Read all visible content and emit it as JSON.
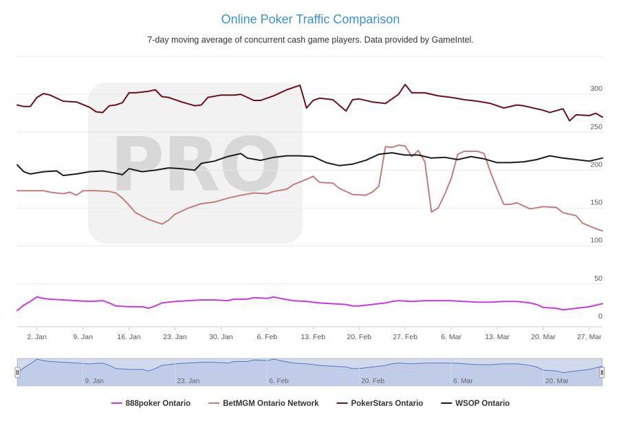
{
  "chart_data": {
    "type": "line",
    "title": "Online Poker Traffic Comparison",
    "subtitle": "7-day moving average of concurrent cash game players. Data provided by GameIntel.",
    "watermark": "PRO",
    "ylim": [
      0,
      350
    ],
    "yticks": [
      0,
      50,
      100,
      150,
      200,
      250,
      300
    ],
    "xticks": [
      "2. Jan",
      "9. Jan",
      "16. Jan",
      "23. Jan",
      "30. Jan",
      "6. Feb",
      "13. Feb",
      "20. Feb",
      "27. Feb",
      "6. Mar",
      "13. Mar",
      "20. Mar",
      "27. Mar"
    ],
    "navigator_ticks": [
      "9. Jan",
      "23. Jan",
      "6. Feb",
      "20. Feb",
      "6. Mar",
      "20. Mar"
    ],
    "x_start": "2022-12-30",
    "x_end": "2023-03-29",
    "grid": true,
    "legend_position": "bottom",
    "series": [
      {
        "name": "888poker Ontario",
        "color": "#c936e3",
        "points": [
          [
            "2022-12-30",
            15
          ],
          [
            "2022-12-31",
            22
          ],
          [
            "2023-01-01",
            27
          ],
          [
            "2023-01-02",
            33
          ],
          [
            "2023-01-03",
            31
          ],
          [
            "2023-01-04",
            30
          ],
          [
            "2023-01-06",
            29
          ],
          [
            "2023-01-08",
            28
          ],
          [
            "2023-01-10",
            27
          ],
          [
            "2023-01-12",
            28
          ],
          [
            "2023-01-13",
            25
          ],
          [
            "2023-01-14",
            21
          ],
          [
            "2023-01-16",
            20
          ],
          [
            "2023-01-18",
            20
          ],
          [
            "2023-01-19",
            18
          ],
          [
            "2023-01-20",
            21
          ],
          [
            "2023-01-21",
            25
          ],
          [
            "2023-01-23",
            27
          ],
          [
            "2023-01-25",
            28
          ],
          [
            "2023-01-27",
            29
          ],
          [
            "2023-01-29",
            29
          ],
          [
            "2023-01-31",
            28
          ],
          [
            "2023-02-01",
            30
          ],
          [
            "2023-02-03",
            30
          ],
          [
            "2023-02-04",
            32
          ],
          [
            "2023-02-06",
            31
          ],
          [
            "2023-02-07",
            33
          ],
          [
            "2023-02-08",
            31
          ],
          [
            "2023-02-10",
            28
          ],
          [
            "2023-02-12",
            27
          ],
          [
            "2023-02-14",
            25
          ],
          [
            "2023-02-16",
            24
          ],
          [
            "2023-02-18",
            23
          ],
          [
            "2023-02-19",
            21
          ],
          [
            "2023-02-20",
            21
          ],
          [
            "2023-02-22",
            23
          ],
          [
            "2023-02-24",
            25
          ],
          [
            "2023-02-25",
            27
          ],
          [
            "2023-02-26",
            28
          ],
          [
            "2023-02-28",
            27
          ],
          [
            "2023-03-02",
            28
          ],
          [
            "2023-03-06",
            28
          ],
          [
            "2023-03-08",
            27
          ],
          [
            "2023-03-10",
            26
          ],
          [
            "2023-03-12",
            26
          ],
          [
            "2023-03-14",
            27
          ],
          [
            "2023-03-16",
            27
          ],
          [
            "2023-03-18",
            25
          ],
          [
            "2023-03-19",
            23
          ],
          [
            "2023-03-20",
            19
          ],
          [
            "2023-03-22",
            18
          ],
          [
            "2023-03-23",
            16
          ],
          [
            "2023-03-25",
            18
          ],
          [
            "2023-03-27",
            20
          ],
          [
            "2023-03-29",
            24
          ]
        ]
      },
      {
        "name": "BetMGM Ontario Network",
        "color": "#c47b7b",
        "points": [
          [
            "2022-12-30",
            173
          ],
          [
            "2023-01-01",
            173
          ],
          [
            "2023-01-03",
            173
          ],
          [
            "2023-01-04",
            171
          ],
          [
            "2023-01-06",
            169
          ],
          [
            "2023-01-07",
            171
          ],
          [
            "2023-01-08",
            167
          ],
          [
            "2023-01-09",
            173
          ],
          [
            "2023-01-11",
            173
          ],
          [
            "2023-01-13",
            172
          ],
          [
            "2023-01-14",
            170
          ],
          [
            "2023-01-15",
            163
          ],
          [
            "2023-01-16",
            154
          ],
          [
            "2023-01-17",
            144
          ],
          [
            "2023-01-19",
            135
          ],
          [
            "2023-01-21",
            129
          ],
          [
            "2023-01-22",
            134
          ],
          [
            "2023-01-23",
            142
          ],
          [
            "2023-01-25",
            150
          ],
          [
            "2023-01-27",
            156
          ],
          [
            "2023-01-29",
            158
          ],
          [
            "2023-01-31",
            163
          ],
          [
            "2023-02-02",
            167
          ],
          [
            "2023-02-04",
            170
          ],
          [
            "2023-02-06",
            169
          ],
          [
            "2023-02-07",
            172
          ],
          [
            "2023-02-09",
            175
          ],
          [
            "2023-02-10",
            181
          ],
          [
            "2023-02-12",
            188
          ],
          [
            "2023-02-13",
            192
          ],
          [
            "2023-02-14",
            184
          ],
          [
            "2023-02-16",
            183
          ],
          [
            "2023-02-17",
            176
          ],
          [
            "2023-02-19",
            168
          ],
          [
            "2023-02-21",
            167
          ],
          [
            "2023-02-22",
            171
          ],
          [
            "2023-02-23",
            179
          ],
          [
            "2023-02-24",
            231
          ],
          [
            "2023-02-25",
            230
          ],
          [
            "2023-02-26",
            233
          ],
          [
            "2023-02-27",
            232
          ],
          [
            "2023-02-28",
            218
          ],
          [
            "2023-03-01",
            226
          ],
          [
            "2023-03-02",
            211
          ],
          [
            "2023-03-03",
            145
          ],
          [
            "2023-03-04",
            150
          ],
          [
            "2023-03-05",
            168
          ],
          [
            "2023-03-06",
            189
          ],
          [
            "2023-03-07",
            221
          ],
          [
            "2023-03-08",
            225
          ],
          [
            "2023-03-10",
            225
          ],
          [
            "2023-03-11",
            222
          ],
          [
            "2023-03-12",
            197
          ],
          [
            "2023-03-13",
            175
          ],
          [
            "2023-03-14",
            155
          ],
          [
            "2023-03-15",
            155
          ],
          [
            "2023-03-16",
            157
          ],
          [
            "2023-03-17",
            153
          ],
          [
            "2023-03-18",
            149
          ],
          [
            "2023-03-20",
            152
          ],
          [
            "2023-03-22",
            151
          ],
          [
            "2023-03-23",
            144
          ],
          [
            "2023-03-25",
            140
          ],
          [
            "2023-03-26",
            130
          ],
          [
            "2023-03-28",
            123
          ],
          [
            "2023-03-29",
            120
          ]
        ]
      },
      {
        "name": "PokerStars Ontario",
        "color": "#6e0b1a",
        "points": [
          [
            "2022-12-30",
            286
          ],
          [
            "2022-12-31",
            284
          ],
          [
            "2023-01-01",
            284
          ],
          [
            "2023-01-02",
            296
          ],
          [
            "2023-01-03",
            301
          ],
          [
            "2023-01-04",
            299
          ],
          [
            "2023-01-06",
            291
          ],
          [
            "2023-01-08",
            290
          ],
          [
            "2023-01-10",
            283
          ],
          [
            "2023-01-11",
            277
          ],
          [
            "2023-01-12",
            276
          ],
          [
            "2023-01-13",
            285
          ],
          [
            "2023-01-14",
            286
          ],
          [
            "2023-01-15",
            289
          ],
          [
            "2023-01-16",
            302
          ],
          [
            "2023-01-17",
            302
          ],
          [
            "2023-01-19",
            304
          ],
          [
            "2023-01-20",
            306
          ],
          [
            "2023-01-21",
            297
          ],
          [
            "2023-01-22",
            296
          ],
          [
            "2023-01-24",
            290
          ],
          [
            "2023-01-26",
            285
          ],
          [
            "2023-01-27",
            286
          ],
          [
            "2023-01-28",
            296
          ],
          [
            "2023-01-30",
            299
          ],
          [
            "2023-02-01",
            299
          ],
          [
            "2023-02-02",
            300
          ],
          [
            "2023-02-04",
            292
          ],
          [
            "2023-02-05",
            292
          ],
          [
            "2023-02-07",
            298
          ],
          [
            "2023-02-09",
            306
          ],
          [
            "2023-02-11",
            312
          ],
          [
            "2023-02-12",
            282
          ],
          [
            "2023-02-13",
            292
          ],
          [
            "2023-02-14",
            295
          ],
          [
            "2023-02-16",
            293
          ],
          [
            "2023-02-18",
            278
          ],
          [
            "2023-02-19",
            293
          ],
          [
            "2023-02-20",
            294
          ],
          [
            "2023-02-22",
            290
          ],
          [
            "2023-02-24",
            288
          ],
          [
            "2023-02-26",
            300
          ],
          [
            "2023-02-27",
            313
          ],
          [
            "2023-02-28",
            302
          ],
          [
            "2023-03-02",
            302
          ],
          [
            "2023-03-04",
            298
          ],
          [
            "2023-03-06",
            296
          ],
          [
            "2023-03-08",
            293
          ],
          [
            "2023-03-10",
            291
          ],
          [
            "2023-03-12",
            288
          ],
          [
            "2023-03-14",
            282
          ],
          [
            "2023-03-16",
            286
          ],
          [
            "2023-03-17",
            285
          ],
          [
            "2023-03-20",
            279
          ],
          [
            "2023-03-21",
            276
          ],
          [
            "2023-03-23",
            281
          ],
          [
            "2023-03-24",
            265
          ],
          [
            "2023-03-25",
            273
          ],
          [
            "2023-03-27",
            272
          ],
          [
            "2023-03-28",
            275
          ],
          [
            "2023-03-29",
            270
          ]
        ]
      },
      {
        "name": "WSOP Ontario",
        "color": "#1a1a1a",
        "points": [
          [
            "2022-12-30",
            207
          ],
          [
            "2022-12-31",
            198
          ],
          [
            "2023-01-01",
            195
          ],
          [
            "2023-01-03",
            198
          ],
          [
            "2023-01-05",
            199
          ],
          [
            "2023-01-06",
            193
          ],
          [
            "2023-01-08",
            195
          ],
          [
            "2023-01-10",
            198
          ],
          [
            "2023-01-12",
            199
          ],
          [
            "2023-01-14",
            196
          ],
          [
            "2023-01-15",
            194
          ],
          [
            "2023-01-16",
            202
          ],
          [
            "2023-01-18",
            198
          ],
          [
            "2023-01-20",
            200
          ],
          [
            "2023-01-22",
            203
          ],
          [
            "2023-01-24",
            202
          ],
          [
            "2023-01-26",
            200
          ],
          [
            "2023-01-27",
            209
          ],
          [
            "2023-01-29",
            212
          ],
          [
            "2023-01-31",
            218
          ],
          [
            "2023-02-02",
            222
          ],
          [
            "2023-02-03",
            216
          ],
          [
            "2023-02-05",
            213
          ],
          [
            "2023-02-07",
            217
          ],
          [
            "2023-02-09",
            219
          ],
          [
            "2023-02-11",
            219
          ],
          [
            "2023-02-13",
            218
          ],
          [
            "2023-02-15",
            210
          ],
          [
            "2023-02-17",
            206
          ],
          [
            "2023-02-19",
            208
          ],
          [
            "2023-02-21",
            213
          ],
          [
            "2023-02-23",
            221
          ],
          [
            "2023-02-25",
            223
          ],
          [
            "2023-02-27",
            220
          ],
          [
            "2023-03-01",
            220
          ],
          [
            "2023-03-03",
            216
          ],
          [
            "2023-03-05",
            217
          ],
          [
            "2023-03-07",
            214
          ],
          [
            "2023-03-09",
            218
          ],
          [
            "2023-03-11",
            215
          ],
          [
            "2023-03-13",
            210
          ],
          [
            "2023-03-15",
            210
          ],
          [
            "2023-03-17",
            211
          ],
          [
            "2023-03-19",
            214
          ],
          [
            "2023-03-21",
            219
          ],
          [
            "2023-03-23",
            216
          ],
          [
            "2023-03-25",
            214
          ],
          [
            "2023-03-27",
            212
          ],
          [
            "2023-03-29",
            216
          ]
        ]
      }
    ]
  }
}
